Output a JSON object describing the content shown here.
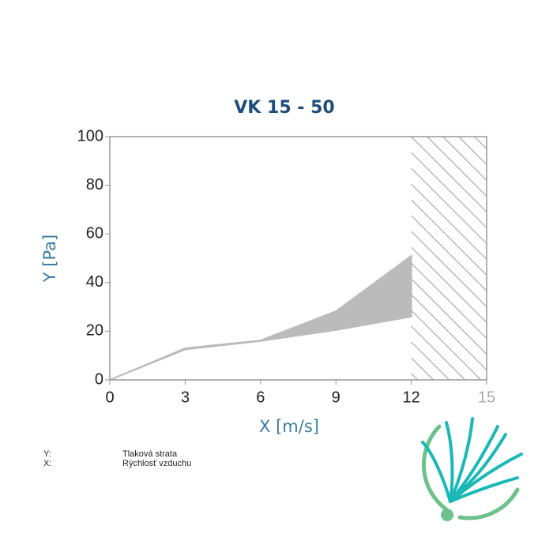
{
  "chart_data": {
    "type": "area_range",
    "title": "VK 15 - 50",
    "x_label": "X [m/s]",
    "y_label": "Y [Pa]",
    "x": [
      0,
      3,
      6,
      9,
      12
    ],
    "upper": [
      0,
      13,
      16.2,
      28.2,
      51
    ],
    "lower": [
      0,
      12.5,
      16,
      20.5,
      26
    ],
    "color": "#bbbbbb",
    "xlim": [
      0,
      15
    ],
    "ylim": [
      0,
      100
    ],
    "xticks": [
      0,
      3,
      6,
      9,
      12,
      15
    ],
    "yticks": [
      0,
      20,
      40,
      60,
      80,
      100
    ],
    "hatched_range": [
      12,
      15
    ],
    "axis_notes": [
      {
        "key": "Y:",
        "text": "Tlaková strata"
      },
      {
        "key": "X:",
        "text": "Rýchlosť vzduchu"
      }
    ]
  }
}
